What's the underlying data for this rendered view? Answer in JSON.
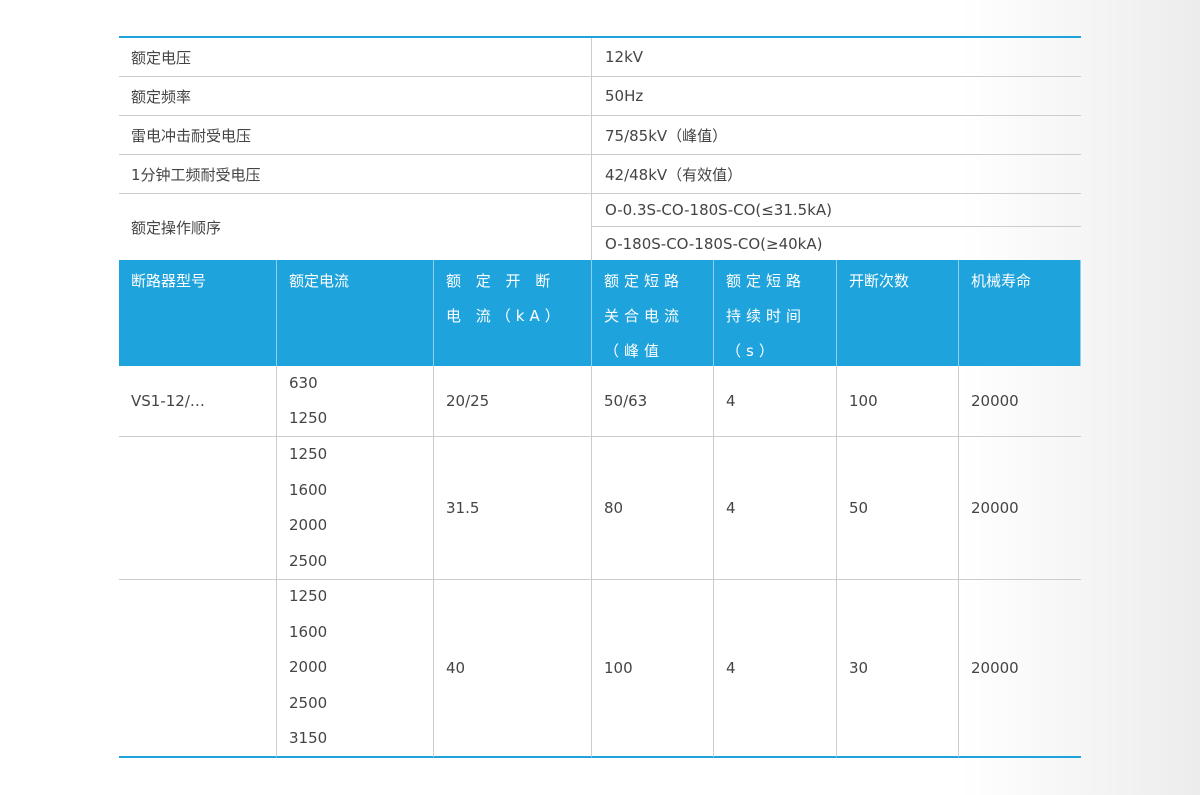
{
  "specs": [
    {
      "label": "额定电压",
      "value": "12kV"
    },
    {
      "label": "额定频率",
      "value": "50Hz"
    },
    {
      "label": "雷电冲击耐受电压",
      "value": "75/85kV（峰值）"
    },
    {
      "label": "1分钟工频耐受电压",
      "value": "42/48kV（有效值）"
    }
  ],
  "operating_sequence": {
    "label": "额定操作顺序",
    "values": [
      "O-0.3S-CO-180S-CO(≤31.5kA)",
      "O-180S-CO-180S-CO(≥40kA)"
    ]
  },
  "table": {
    "headers": [
      "断路器型号",
      "额定电流",
      "额 定 开 断 电 流（kA）",
      "额定短路关合电流（峰值kA）",
      "额定短路持续时间（s）",
      "开断次数",
      "机械寿命"
    ],
    "rows": [
      {
        "model": "VS1-12/…",
        "currents": [
          "630",
          "1250"
        ],
        "breaking": "20/25",
        "making": "50/63",
        "duration": "4",
        "operations": "100",
        "mech_life": "20000"
      },
      {
        "model": "",
        "currents": [
          "1250",
          "1600",
          "2000",
          "2500"
        ],
        "breaking": "31.5",
        "making": "80",
        "duration": "4",
        "operations": "50",
        "mech_life": "20000"
      },
      {
        "model": "",
        "currents": [
          "1250",
          "1600",
          "2000",
          "2500",
          "3150"
        ],
        "breaking": "40",
        "making": "100",
        "duration": "4",
        "operations": "30",
        "mech_life": "20000"
      }
    ]
  },
  "colors": {
    "accent": "#1ea3dc"
  }
}
